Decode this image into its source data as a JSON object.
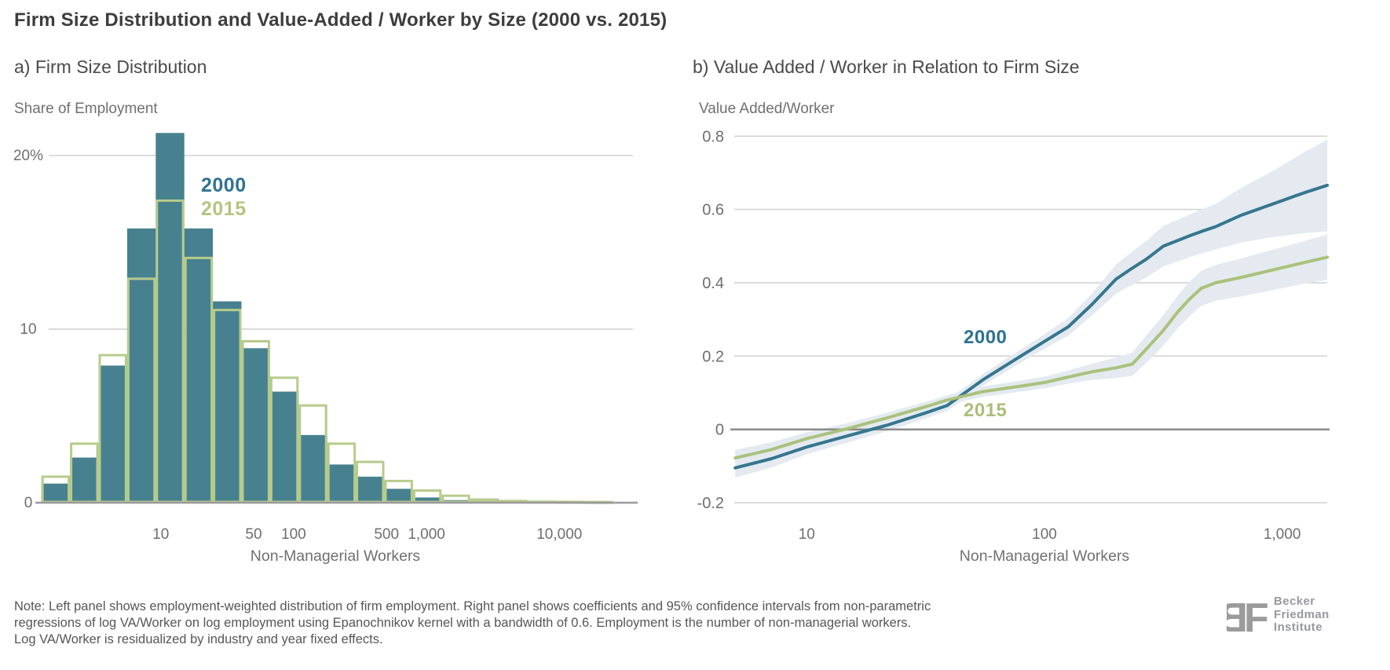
{
  "page": {
    "title": "Firm Size Distribution and Value-Added / Worker by Size (2000 vs. 2015)"
  },
  "panels": {
    "a": {
      "title": "a) Firm Size Distribution",
      "y_axis_title": "Share of Employment",
      "x_axis_title": "Non-Managerial Workers",
      "legend": {
        "s2000": "2000",
        "s2015": "2015"
      }
    },
    "b": {
      "title": "b) Value Added / Worker in Relation to Firm Size",
      "y_axis_title": "Value Added/Worker",
      "x_axis_title": "Non-Managerial Workers",
      "legend": {
        "s2000": "2000",
        "s2015": "2015"
      }
    }
  },
  "note": {
    "line1": "Note: Left panel shows employment-weighted distribution of firm employment. Right panel shows coefficients and 95% confidence intervals from non-parametric",
    "line2": "regressions of log VA/Worker on log employment using Epanochnikov kernel with a bandwidth of 0.6. Employment is the number of non-managerial workers.",
    "line3": "Log VA/Worker is residualized by industry and year fixed effects."
  },
  "logo": {
    "monogram": "BF",
    "line1": "Becker",
    "line2": "Friedman",
    "line3": "Institute"
  },
  "colors": {
    "bar_2000_fill": "#47818F",
    "bar_2015_outline": "#B7CB8C",
    "line_2000": "#35768F",
    "line_2015": "#ABC17C",
    "band_fill": "#E4EAF0",
    "legend_2000_text": "#2F7292",
    "legend_2015_text": "#B3C581",
    "grid_light": "#cfcfcf",
    "axis_dark": "#8a8a8a",
    "tick_text": "#6e6e6e"
  },
  "chart_data": [
    {
      "panel": "a",
      "type": "bar",
      "title": "a) Firm Size Distribution",
      "xlabel": "Non-Managerial Workers",
      "ylabel": "Share of Employment",
      "x_scale": "log",
      "ylim": [
        0,
        22
      ],
      "grid": "horizontal",
      "y_ticks": [
        {
          "v": 0,
          "label": "0"
        },
        {
          "v": 10,
          "label": "10"
        },
        {
          "v": 20,
          "label": "20%"
        }
      ],
      "x_ticks": [
        {
          "v": 10,
          "label": "10"
        },
        {
          "v": 50,
          "label": "50"
        },
        {
          "v": 100,
          "label": "100"
        },
        {
          "v": 500,
          "label": "500"
        },
        {
          "v": 1000,
          "label": "1,000"
        },
        {
          "v": 10000,
          "label": "10,000"
        }
      ],
      "bin_width_ln": 0.5,
      "bin_centers_workers": [
        1.6,
        2.7,
        4.5,
        7.4,
        12.2,
        20.1,
        33.1,
        54.6,
        90,
        148,
        245,
        403,
        665,
        1097,
        1808,
        2981,
        4915,
        8103,
        13360,
        22026
      ],
      "series": [
        {
          "name": "2000",
          "values": [
            1.1,
            2.6,
            7.9,
            15.8,
            21.3,
            15.8,
            11.6,
            8.9,
            6.4,
            3.9,
            2.2,
            1.5,
            0.8,
            0.3,
            0.15,
            0.08,
            0.05,
            0.03,
            0.02,
            0.02
          ]
        },
        {
          "name": "2015",
          "values": [
            1.5,
            3.4,
            8.5,
            12.9,
            17.4,
            14.1,
            11.1,
            9.3,
            7.2,
            5.6,
            3.4,
            2.35,
            1.25,
            0.7,
            0.4,
            0.18,
            0.1,
            0.06,
            0.05,
            0.04
          ]
        }
      ]
    },
    {
      "panel": "b",
      "type": "line",
      "title": "b) Value Added / Worker in Relation to Firm Size",
      "xlabel": "Non-Managerial Workers",
      "ylabel": "Value Added/Worker",
      "x_scale": "log",
      "ylim": [
        -0.25,
        0.85
      ],
      "grid": "horizontal",
      "legend_position": "inline-labels",
      "y_ticks": [
        {
          "v": 0.8,
          "label": "0.8"
        },
        {
          "v": 0.6,
          "label": "0.6"
        },
        {
          "v": 0.4,
          "label": "0.4"
        },
        {
          "v": 0.2,
          "label": "0.2"
        },
        {
          "v": 0,
          "label": "0"
        },
        {
          "v": -0.2,
          "label": "-0.2"
        }
      ],
      "x_ticks": [
        {
          "v": 10,
          "label": "10"
        },
        {
          "v": 100,
          "label": "100"
        },
        {
          "v": 1000,
          "label": "1,000"
        }
      ],
      "x_workers": [
        5,
        7.1,
        10,
        14.8,
        21.9,
        31.6,
        38.9,
        55,
        79.4,
        100,
        126,
        158,
        200,
        234,
        269,
        316,
        363,
        407,
        457,
        525,
        676,
        912,
        1230,
        1549
      ],
      "series": [
        {
          "name": "2000",
          "values": [
            -0.105,
            -0.08,
            -0.048,
            -0.018,
            0.012,
            0.045,
            0.065,
            0.135,
            0.2,
            0.24,
            0.28,
            0.34,
            0.41,
            0.44,
            0.465,
            0.5,
            0.515,
            0.528,
            0.54,
            0.553,
            0.585,
            0.615,
            0.645,
            0.666
          ],
          "ci_halfwidth": [
            0.027,
            0.024,
            0.02,
            0.018,
            0.016,
            0.015,
            0.015,
            0.016,
            0.018,
            0.02,
            0.024,
            0.03,
            0.04,
            0.045,
            0.05,
            0.055,
            0.057,
            0.058,
            0.06,
            0.062,
            0.075,
            0.09,
            0.11,
            0.125
          ]
        },
        {
          "name": "2015",
          "values": [
            -0.078,
            -0.055,
            -0.025,
            0.002,
            0.032,
            0.062,
            0.08,
            0.103,
            0.118,
            0.128,
            0.143,
            0.157,
            0.168,
            0.178,
            0.22,
            0.27,
            0.32,
            0.355,
            0.385,
            0.4,
            0.415,
            0.435,
            0.455,
            0.47
          ],
          "ci_halfwidth": [
            0.022,
            0.02,
            0.017,
            0.015,
            0.014,
            0.013,
            0.013,
            0.014,
            0.015,
            0.016,
            0.018,
            0.022,
            0.028,
            0.032,
            0.038,
            0.042,
            0.045,
            0.047,
            0.048,
            0.049,
            0.052,
            0.055,
            0.058,
            0.062
          ]
        }
      ],
      "ci_note": "95% confidence intervals"
    }
  ]
}
